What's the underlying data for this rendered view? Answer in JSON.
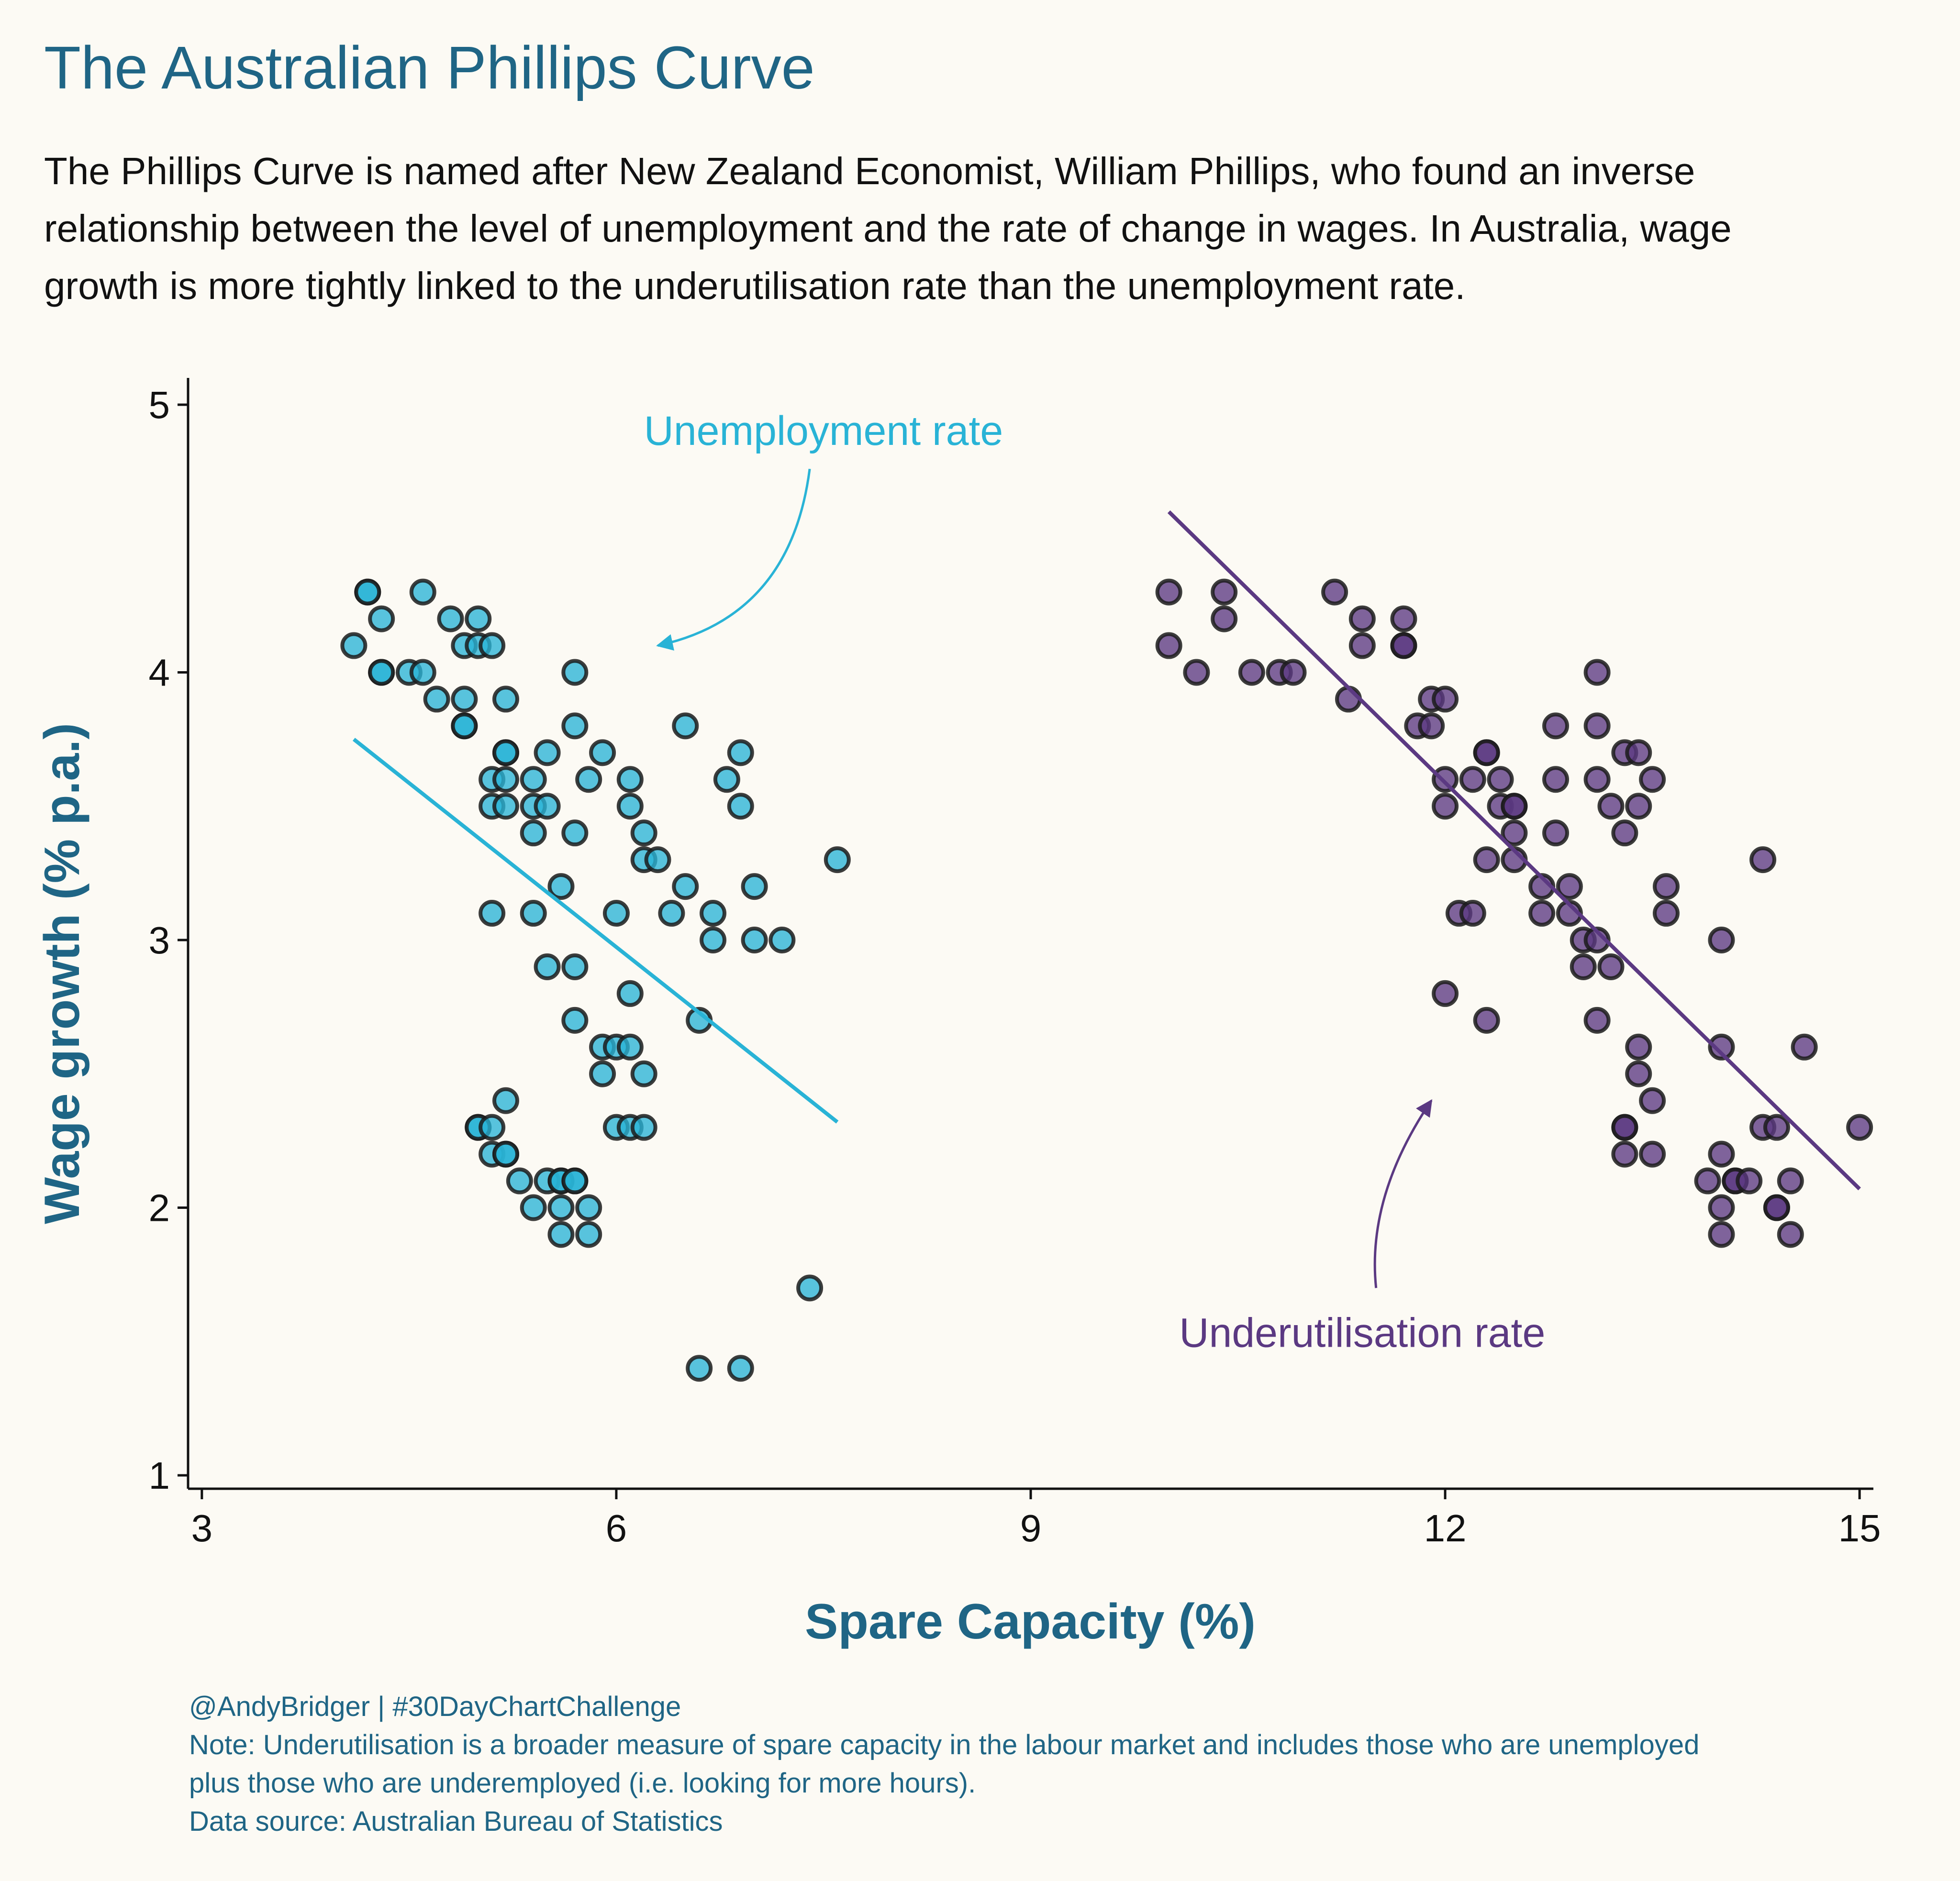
{
  "title": "The Australian Phillips Curve",
  "subtitle_lines": [
    "The Phillips Curve is named after New Zealand Economist, William Phillips, who found an inverse",
    "relationship between the level of unemployment and the rate of change in wages. In Australia, wage",
    "growth is more tightly linked to the underutilisation rate than the unemployment rate."
  ],
  "caption_lines": [
    "@AndyBridger | #30DayChartChallenge",
    "Note: Underutilisation is a broader measure of spare capacity in the labour market and includes those who are unemployed",
    "plus those who are underemployed (i.e. looking for more hours).",
    "Data source: Australian Bureau of Statistics"
  ],
  "colors": {
    "background": "#fcfaf4",
    "title": "#1f6585",
    "unemployment": "#29b3d6",
    "underutilisation": "#5b3982"
  },
  "chart_data": {
    "type": "scatter",
    "title": "The Australian Phillips Curve",
    "xlabel": "Spare Capacity (%)",
    "ylabel": "Wage growth (% p.a.)",
    "xlim": [
      2.9,
      15.1
    ],
    "ylim": [
      0.95,
      5.1
    ],
    "x_ticks": [
      3,
      6,
      9,
      12,
      15
    ],
    "y_ticks": [
      1,
      2,
      3,
      4,
      5
    ],
    "grid": false,
    "legend": "none",
    "series": [
      {
        "name": "Unemployment rate",
        "color": "#29b3d6",
        "points": [
          [
            4.1,
            4.1
          ],
          [
            4.2,
            4.3
          ],
          [
            4.2,
            4.3
          ],
          [
            4.3,
            4.2
          ],
          [
            4.3,
            4.0
          ],
          [
            4.3,
            4.0
          ],
          [
            4.5,
            4.0
          ],
          [
            4.6,
            4.3
          ],
          [
            4.6,
            4.0
          ],
          [
            4.7,
            3.9
          ],
          [
            4.8,
            4.2
          ],
          [
            4.9,
            4.1
          ],
          [
            4.9,
            3.9
          ],
          [
            4.9,
            3.8
          ],
          [
            4.9,
            3.8
          ],
          [
            5.0,
            4.2
          ],
          [
            5.0,
            4.1
          ],
          [
            5.1,
            4.1
          ],
          [
            5.2,
            3.9
          ],
          [
            5.2,
            3.7
          ],
          [
            5.2,
            3.7
          ],
          [
            5.1,
            3.6
          ],
          [
            5.2,
            3.6
          ],
          [
            5.1,
            3.5
          ],
          [
            5.2,
            3.5
          ],
          [
            5.4,
            3.6
          ],
          [
            5.4,
            3.5
          ],
          [
            5.5,
            3.5
          ],
          [
            5.4,
            3.4
          ],
          [
            5.5,
            3.7
          ],
          [
            5.7,
            3.8
          ],
          [
            5.7,
            4.0
          ],
          [
            5.8,
            3.6
          ],
          [
            5.9,
            3.7
          ],
          [
            5.7,
            3.4
          ],
          [
            5.6,
            3.2
          ],
          [
            5.1,
            3.1
          ],
          [
            5.4,
            3.1
          ],
          [
            6.0,
            3.1
          ],
          [
            6.1,
            3.6
          ],
          [
            6.1,
            3.5
          ],
          [
            6.2,
            3.4
          ],
          [
            6.2,
            3.3
          ],
          [
            6.3,
            3.3
          ],
          [
            6.5,
            3.8
          ],
          [
            6.5,
            3.2
          ],
          [
            6.4,
            3.1
          ],
          [
            6.7,
            3.1
          ],
          [
            6.7,
            3.0
          ],
          [
            6.8,
            3.6
          ],
          [
            6.9,
            3.7
          ],
          [
            6.9,
            3.5
          ],
          [
            7.0,
            3.2
          ],
          [
            7.0,
            3.0
          ],
          [
            7.2,
            3.0
          ],
          [
            7.6,
            3.3
          ],
          [
            5.5,
            2.9
          ],
          [
            5.7,
            2.9
          ],
          [
            5.7,
            2.7
          ],
          [
            6.6,
            2.7
          ],
          [
            6.1,
            2.8
          ],
          [
            5.9,
            2.6
          ],
          [
            6.0,
            2.6
          ],
          [
            6.1,
            2.6
          ],
          [
            5.9,
            2.5
          ],
          [
            6.2,
            2.5
          ],
          [
            5.2,
            2.4
          ],
          [
            5.0,
            2.3
          ],
          [
            5.0,
            2.3
          ],
          [
            5.1,
            2.3
          ],
          [
            6.0,
            2.3
          ],
          [
            6.1,
            2.3
          ],
          [
            6.2,
            2.3
          ],
          [
            5.1,
            2.2
          ],
          [
            5.2,
            2.2
          ],
          [
            5.2,
            2.2
          ],
          [
            5.3,
            2.1
          ],
          [
            5.5,
            2.1
          ],
          [
            5.6,
            2.1
          ],
          [
            5.6,
            2.1
          ],
          [
            5.7,
            2.1
          ],
          [
            5.7,
            2.1
          ],
          [
            5.4,
            2.0
          ],
          [
            5.6,
            2.0
          ],
          [
            5.8,
            2.0
          ],
          [
            5.6,
            1.9
          ],
          [
            5.8,
            1.9
          ],
          [
            7.4,
            1.7
          ],
          [
            6.6,
            1.4
          ],
          [
            6.9,
            1.4
          ]
        ],
        "trend": {
          "x": [
            4.1,
            7.6
          ],
          "y": [
            3.75,
            2.32
          ]
        }
      },
      {
        "name": "Underutilisation rate",
        "color": "#5b3982",
        "points": [
          [
            10.0,
            4.3
          ],
          [
            10.4,
            4.3
          ],
          [
            10.0,
            4.1
          ],
          [
            10.4,
            4.2
          ],
          [
            10.2,
            4.0
          ],
          [
            10.6,
            4.0
          ],
          [
            10.8,
            4.0
          ],
          [
            10.9,
            4.0
          ],
          [
            11.2,
            4.3
          ],
          [
            11.4,
            4.2
          ],
          [
            11.7,
            4.2
          ],
          [
            11.4,
            4.1
          ],
          [
            11.7,
            4.1
          ],
          [
            11.7,
            4.1
          ],
          [
            11.3,
            3.9
          ],
          [
            11.9,
            3.9
          ],
          [
            12.0,
            3.9
          ],
          [
            11.8,
            3.8
          ],
          [
            11.9,
            3.8
          ],
          [
            12.3,
            3.7
          ],
          [
            12.3,
            3.7
          ],
          [
            12.0,
            3.6
          ],
          [
            12.2,
            3.6
          ],
          [
            12.4,
            3.6
          ],
          [
            12.0,
            3.5
          ],
          [
            12.4,
            3.5
          ],
          [
            12.5,
            3.5
          ],
          [
            12.5,
            3.5
          ],
          [
            12.5,
            3.4
          ],
          [
            12.3,
            3.3
          ],
          [
            12.5,
            3.3
          ],
          [
            12.8,
            3.8
          ],
          [
            12.8,
            3.6
          ],
          [
            12.8,
            3.4
          ],
          [
            12.1,
            3.1
          ],
          [
            12.2,
            3.1
          ],
          [
            12.7,
            3.2
          ],
          [
            12.9,
            3.2
          ],
          [
            12.7,
            3.1
          ],
          [
            12.9,
            3.1
          ],
          [
            13.0,
            3.0
          ],
          [
            13.1,
            3.0
          ],
          [
            13.0,
            2.9
          ],
          [
            13.2,
            2.9
          ],
          [
            13.1,
            4.0
          ],
          [
            13.1,
            3.8
          ],
          [
            13.1,
            3.6
          ],
          [
            13.2,
            3.5
          ],
          [
            13.3,
            3.7
          ],
          [
            13.4,
            3.7
          ],
          [
            13.5,
            3.6
          ],
          [
            13.3,
            3.4
          ],
          [
            13.4,
            3.5
          ],
          [
            13.6,
            3.2
          ],
          [
            13.6,
            3.1
          ],
          [
            12.0,
            2.8
          ],
          [
            12.3,
            2.7
          ],
          [
            13.1,
            2.7
          ],
          [
            13.4,
            2.6
          ],
          [
            13.4,
            2.5
          ],
          [
            13.5,
            2.4
          ],
          [
            13.3,
            2.3
          ],
          [
            13.3,
            2.3
          ],
          [
            13.3,
            2.2
          ],
          [
            13.5,
            2.2
          ],
          [
            14.0,
            3.0
          ],
          [
            14.3,
            3.3
          ],
          [
            14.0,
            2.6
          ],
          [
            14.6,
            2.6
          ],
          [
            14.3,
            2.3
          ],
          [
            14.4,
            2.3
          ],
          [
            15.0,
            2.3
          ],
          [
            14.0,
            2.2
          ],
          [
            13.9,
            2.1
          ],
          [
            14.1,
            2.1
          ],
          [
            14.1,
            2.1
          ],
          [
            14.2,
            2.1
          ],
          [
            14.5,
            2.1
          ],
          [
            14.0,
            2.0
          ],
          [
            14.4,
            2.0
          ],
          [
            14.4,
            2.0
          ],
          [
            14.0,
            1.9
          ],
          [
            14.5,
            1.9
          ]
        ],
        "trend": {
          "x": [
            10.0,
            15.0
          ],
          "y": [
            4.6,
            2.07
          ]
        }
      }
    ],
    "annotations": [
      {
        "text": "Unemployment rate",
        "series": 0,
        "label_at": [
          7.5,
          4.85
        ],
        "arrow_from": [
          7.4,
          4.76
        ],
        "arrow_to": [
          6.3,
          4.1
        ]
      },
      {
        "text": "Underutilisation rate",
        "series": 1,
        "label_at": [
          11.4,
          1.48
        ],
        "arrow_from": [
          11.5,
          1.7
        ],
        "arrow_to": [
          11.9,
          2.4
        ]
      }
    ]
  }
}
